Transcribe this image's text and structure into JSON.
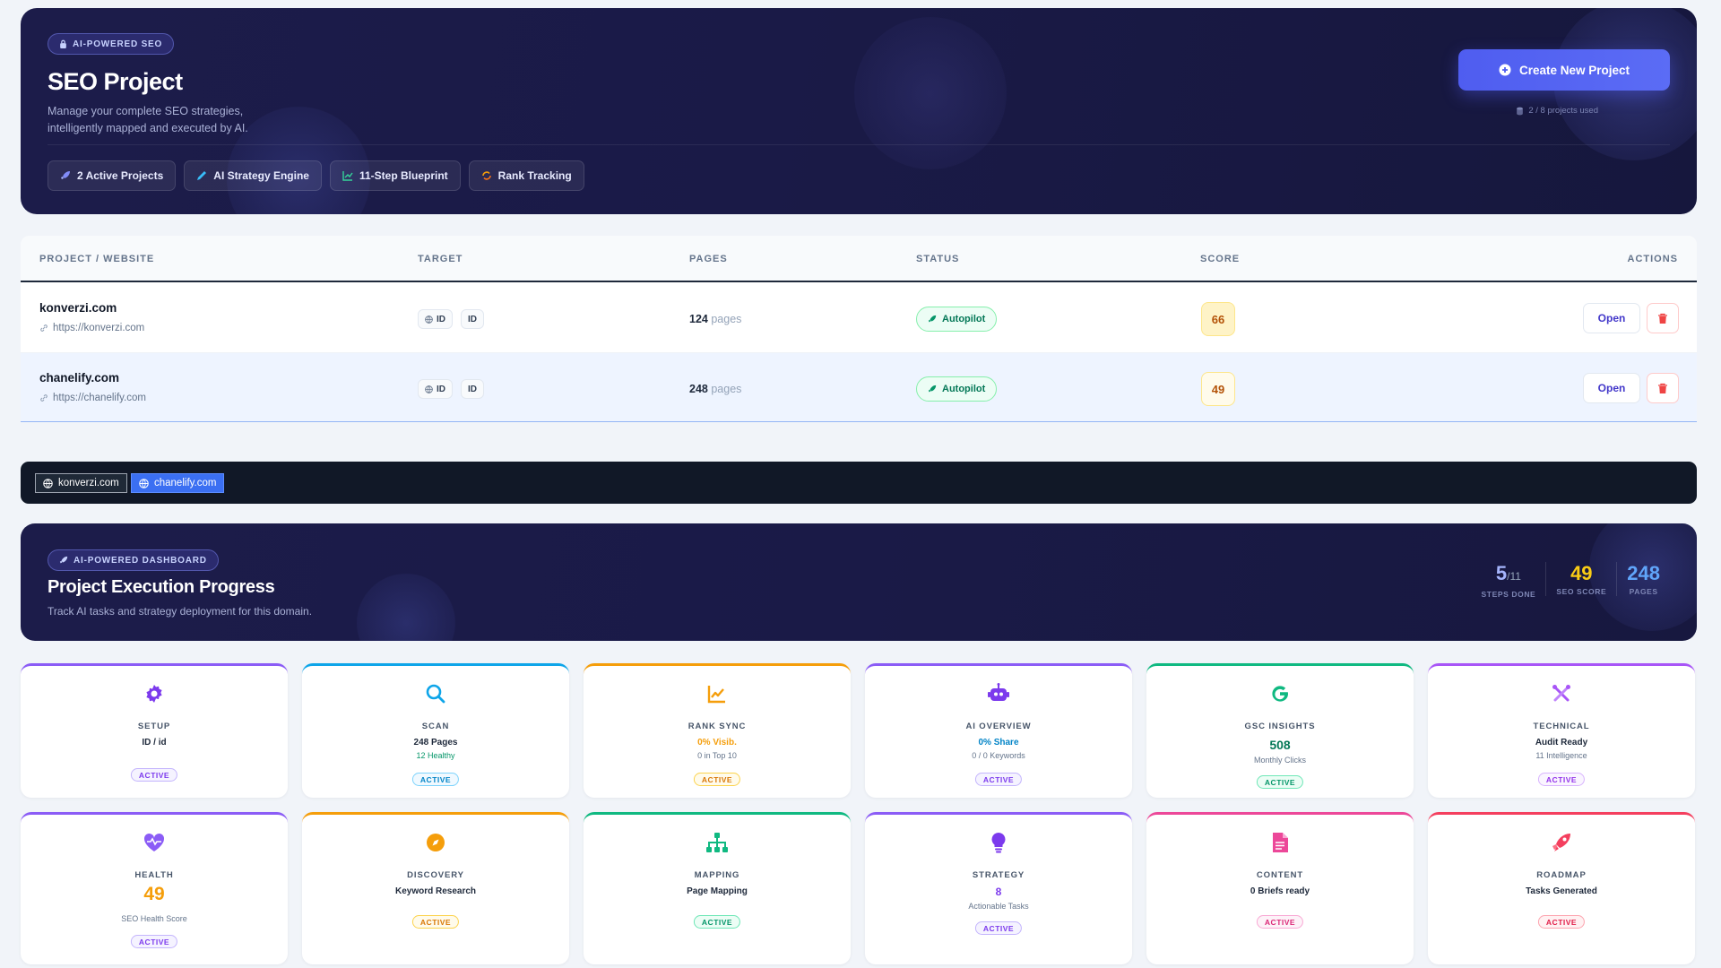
{
  "hero": {
    "badge": "AI-POWERED SEO",
    "title": "SEO Project",
    "description": "Manage your complete SEO strategies, intelligently mapped and executed by AI.",
    "chips": [
      "2 Active Projects",
      "AI Strategy Engine",
      "11-Step Blueprint",
      "Rank Tracking"
    ],
    "create_button": "Create New Project",
    "usage": "2 / 8 projects used"
  },
  "table": {
    "headers": [
      "PROJECT / WEBSITE",
      "TARGET",
      "PAGES",
      "STATUS",
      "SCORE",
      "ACTIONS"
    ],
    "rows": [
      {
        "name": "konverzi.com",
        "url": "https://konverzi.com",
        "target_country": "ID",
        "target_lang": "ID",
        "pages": "124",
        "pages_unit": "pages",
        "status": "Autopilot",
        "score": "66",
        "open": "Open"
      },
      {
        "name": "chanelify.com",
        "url": "https://chanelify.com",
        "target_country": "ID",
        "target_lang": "ID",
        "pages": "248",
        "pages_unit": "pages",
        "status": "Autopilot",
        "score": "49",
        "open": "Open"
      }
    ]
  },
  "domain_tabs": [
    {
      "label": "konverzi.com",
      "active": false
    },
    {
      "label": "chanelify.com",
      "active": true
    }
  ],
  "dashboard": {
    "badge": "AI-POWERED DASHBOARD",
    "title": "Project Execution Progress",
    "description": "Track AI tasks and strategy deployment for this domain.",
    "stats": [
      {
        "value": "5",
        "suffix": "/11",
        "label": "STEPS DONE",
        "color": "#a5b4fc"
      },
      {
        "value": "49",
        "suffix": "",
        "label": "SEO SCORE",
        "color": "#facc15"
      },
      {
        "value": "248",
        "suffix": "",
        "label": "PAGES",
        "color": "#60a5fa"
      }
    ]
  },
  "cards": [
    {
      "title": "SETUP",
      "l1": "ID / id",
      "status": "ACTIVE",
      "icon": "gear-icon",
      "color": "#8b5cf6"
    },
    {
      "title": "SCAN",
      "l1": "248 Pages",
      "l2": "12 Healthy",
      "status": "ACTIVE",
      "icon": "search-icon",
      "color": "#0ea5e9"
    },
    {
      "title": "RANK SYNC",
      "l1": "0% Visib.",
      "l2": "0 in Top 10",
      "status": "ACTIVE",
      "icon": "chart-line-icon",
      "color": "#f59e0b"
    },
    {
      "title": "AI OVERVIEW",
      "l1": "0% Share",
      "l2": "0 / 0 Keywords",
      "status": "ACTIVE",
      "icon": "robot-icon",
      "color": "#8b5cf6"
    },
    {
      "title": "GSC INSIGHTS",
      "big": "508",
      "l2": "Monthly Clicks",
      "status": "ACTIVE",
      "icon": "google-icon",
      "color": "#10b981"
    },
    {
      "title": "TECHNICAL",
      "l1": "Audit Ready",
      "l2": "11 Intelligence",
      "status": "ACTIVE",
      "icon": "tools-icon",
      "color": "#a855f7"
    },
    {
      "title": "HEALTH",
      "big": "49",
      "l2": "SEO Health Score",
      "status": "ACTIVE",
      "icon": "heart-pulse-icon",
      "color": "#8b5cf6"
    },
    {
      "title": "DISCOVERY",
      "l1": "Keyword Research",
      "status": "ACTIVE",
      "icon": "compass-icon",
      "color": "#f59e0b"
    },
    {
      "title": "MAPPING",
      "l1": "Page Mapping",
      "status": "ACTIVE",
      "icon": "sitemap-icon",
      "color": "#10b981"
    },
    {
      "title": "STRATEGY",
      "big": "8",
      "l2": "Actionable Tasks",
      "status": "ACTIVE",
      "icon": "lightbulb-icon",
      "color": "#8b5cf6"
    },
    {
      "title": "CONTENT",
      "l1": "0 Briefs ready",
      "status": "ACTIVE",
      "icon": "document-icon",
      "color": "#ec4899"
    },
    {
      "title": "ROADMAP",
      "l1": "Tasks Generated",
      "status": "ACTIVE",
      "icon": "rocket-icon",
      "color": "#f43f5e"
    }
  ]
}
